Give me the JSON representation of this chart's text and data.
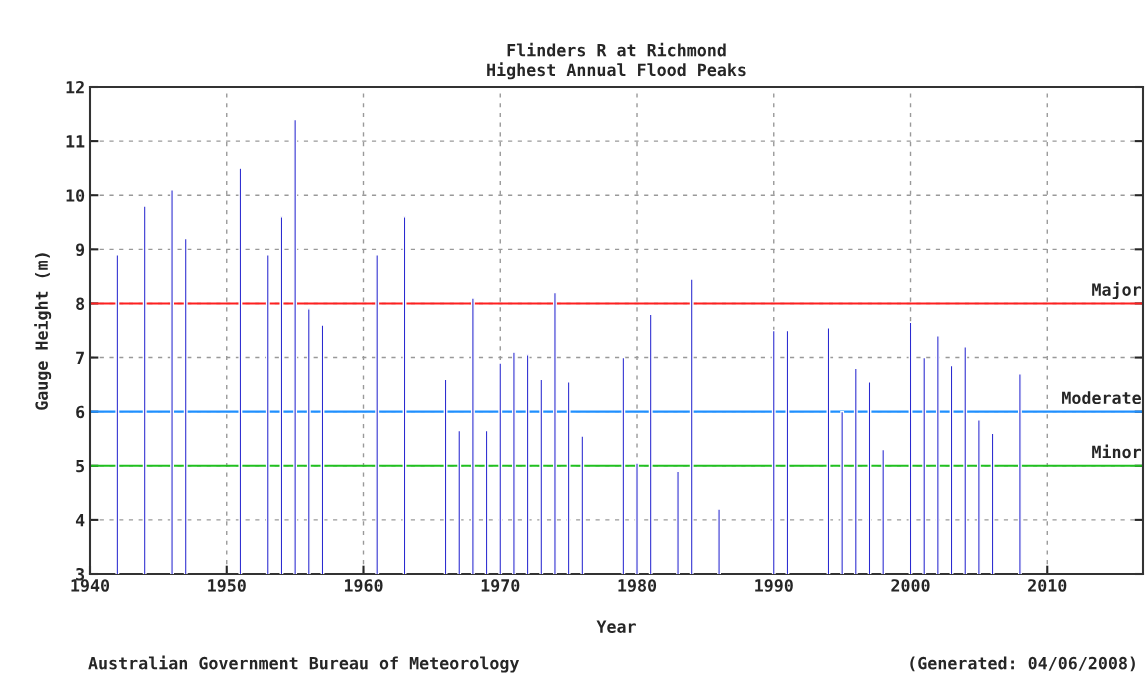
{
  "chart_data": {
    "type": "bar",
    "title": "Flinders R at Richmond\nHighest Annual Flood Peaks",
    "xlabel": "Year",
    "ylabel": "Gauge Height (m)",
    "x": [
      1942,
      1944,
      1946,
      1947,
      1951,
      1953,
      1954,
      1955,
      1956,
      1957,
      1961,
      1963,
      1966,
      1967,
      1968,
      1969,
      1970,
      1971,
      1972,
      1973,
      1974,
      1975,
      1976,
      1979,
      1980,
      1981,
      1983,
      1984,
      1986,
      1990,
      1991,
      1994,
      1995,
      1996,
      1997,
      1998,
      2000,
      2001,
      2002,
      2003,
      2004,
      2005,
      2006,
      2008
    ],
    "values": [
      8.9,
      9.8,
      10.1,
      9.2,
      10.5,
      8.9,
      9.6,
      11.4,
      7.9,
      7.6,
      8.9,
      9.6,
      6.6,
      5.65,
      8.1,
      5.65,
      6.9,
      7.1,
      7.05,
      6.6,
      8.2,
      6.55,
      5.55,
      7.0,
      5.05,
      7.8,
      4.9,
      8.45,
      4.2,
      7.5,
      7.5,
      7.55,
      6.0,
      6.8,
      6.55,
      5.3,
      7.65,
      7.0,
      7.4,
      6.85,
      7.2,
      5.85,
      5.6,
      6.7
    ],
    "color": "#2a2ad0",
    "xlim": [
      1940,
      2017
    ],
    "xticks": [
      1940,
      1950,
      1960,
      1970,
      1980,
      1990,
      2000,
      2010
    ],
    "ylim": [
      3,
      12
    ],
    "yticks": [
      3,
      4,
      5,
      6,
      7,
      8,
      9,
      10,
      11,
      12
    ],
    "grid": true,
    "ref_lines": [
      {
        "axis": "y",
        "value": 8,
        "label": "Major",
        "color": "#ff2020"
      },
      {
        "axis": "y",
        "value": 6,
        "label": "Moderate",
        "color": "#2090ff"
      },
      {
        "axis": "y",
        "value": 5,
        "label": "Minor",
        "color": "#20c020"
      }
    ],
    "annotations": [
      "Australian Government Bureau of Meteorology",
      "(Generated: 04/06/2008)"
    ]
  }
}
